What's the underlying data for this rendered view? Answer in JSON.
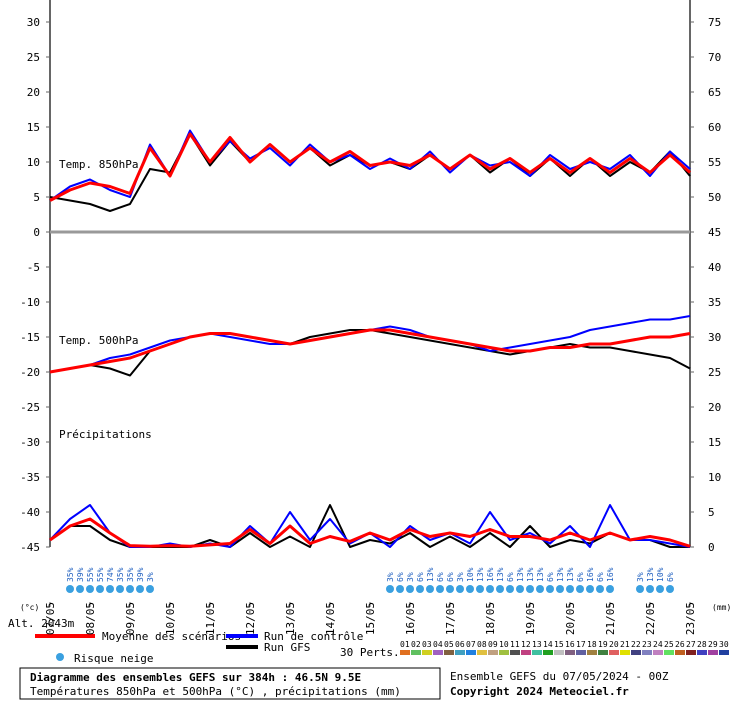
{
  "chart_data": {
    "type": "line",
    "title": "Diagramme des ensembles GEFS sur 384h : 46.5N 9.5E",
    "subtitle": "Températures 850hPa et 500hPa (°C) , précipitations (mm)",
    "run_label": "Ensemble GEFS du 07/05/2024 - 00Z",
    "copyright": "Copyright 2024 Meteociel.fr",
    "y_unit": "(°c)",
    "y2_unit": "(mm)",
    "altitude": "Alt. 2043m",
    "panels": {
      "t850": "Temp. 850hPa",
      "t500": "Temp. 500hPa",
      "precip": "Précipitations"
    },
    "x": [
      0,
      12,
      24,
      36,
      48,
      60,
      72,
      84,
      96,
      108,
      120,
      132,
      144,
      156,
      168,
      180,
      192,
      204,
      216,
      228,
      240,
      252,
      264,
      276,
      288,
      300,
      312,
      324,
      336,
      348,
      360,
      372,
      384
    ],
    "xlim": [
      0,
      384
    ],
    "xticks": [
      {
        "value": 0,
        "label": "07/05"
      },
      {
        "value": 24,
        "label": "08/05"
      },
      {
        "value": 48,
        "label": "09/05"
      },
      {
        "value": 72,
        "label": "10/05"
      },
      {
        "value": 96,
        "label": "11/05"
      },
      {
        "value": 120,
        "label": "12/05"
      },
      {
        "value": 144,
        "label": "13/05"
      },
      {
        "value": 168,
        "label": "14/05"
      },
      {
        "value": 192,
        "label": "15/05"
      },
      {
        "value": 216,
        "label": "16/05"
      },
      {
        "value": 240,
        "label": "17/05"
      },
      {
        "value": 264,
        "label": "18/05"
      },
      {
        "value": 288,
        "label": "19/05"
      },
      {
        "value": 312,
        "label": "20/05"
      },
      {
        "value": 336,
        "label": "21/05"
      },
      {
        "value": 360,
        "label": "22/05"
      },
      {
        "value": 384,
        "label": "23/05"
      }
    ],
    "ylim": [
      -45,
      30
    ],
    "yticks": [
      30,
      25,
      20,
      15,
      10,
      5,
      0,
      -5,
      -10,
      -15,
      -20,
      -25,
      -30,
      -35,
      -40,
      -45
    ],
    "y2lim": [
      0,
      75
    ],
    "y2ticks": [
      75,
      70,
      65,
      60,
      55,
      50,
      45,
      40,
      35,
      30,
      25,
      20,
      15,
      10,
      5,
      0
    ],
    "series": [
      {
        "name": "Moyenne des scénarios",
        "color": "#ff0000",
        "t850": [
          4.5,
          6,
          7,
          6.5,
          5.5,
          12,
          8,
          14,
          10,
          13.5,
          10,
          12.5,
          10,
          12,
          10,
          11.5,
          9.5,
          10,
          9.5,
          11,
          9,
          11,
          9,
          10.5,
          8.5,
          10.5,
          8.5,
          10.5,
          8.5,
          10.5,
          8.5,
          11,
          8.5
        ],
        "t500": [
          -20,
          -19.5,
          -19,
          -18.5,
          -18,
          -17,
          -16,
          -15,
          -14.5,
          -14.5,
          -15,
          -15.5,
          -16,
          -15.5,
          -15,
          -14.5,
          -14,
          -14,
          -14.5,
          -15,
          -15.5,
          -16,
          -16.5,
          -17,
          -17,
          -16.5,
          -16.5,
          -16,
          -16,
          -15.5,
          -15,
          -15,
          -14.5
        ],
        "precip": [
          1,
          3,
          4,
          2,
          0.2,
          0.1,
          0.2,
          0.1,
          0.3,
          0.5,
          2.5,
          0.5,
          3,
          0.5,
          1.5,
          0.8,
          2,
          1,
          2.5,
          1.5,
          2,
          1.5,
          2.5,
          1.5,
          1.5,
          1,
          2,
          1,
          2,
          1,
          1.5,
          1,
          0.1
        ]
      },
      {
        "name": "Run de contrôle",
        "color": "#0000ff",
        "t850": [
          4.5,
          6.5,
          7.5,
          6,
          5,
          12.5,
          8,
          14.5,
          10,
          13,
          10.5,
          12,
          9.5,
          12.5,
          10,
          11,
          9,
          10.5,
          9,
          11.5,
          8.5,
          11,
          9.5,
          10,
          8,
          11,
          9,
          10,
          9,
          11,
          8,
          11.5,
          9
        ],
        "t500": [
          -20,
          -19.5,
          -19,
          -18,
          -17.5,
          -16.5,
          -15.5,
          -15,
          -14.5,
          -15,
          -15.5,
          -16,
          -16,
          -15.5,
          -15,
          -14.5,
          -14,
          -13.5,
          -14,
          -15,
          -15.5,
          -16,
          -17,
          -16.5,
          -16,
          -15.5,
          -15,
          -14,
          -13.5,
          -13,
          -12.5,
          -12.5,
          -12
        ],
        "precip": [
          1,
          4,
          6,
          2,
          0,
          0,
          0.5,
          0,
          0.5,
          0,
          3,
          0.5,
          5,
          1,
          4,
          0.5,
          2,
          0,
          3,
          1,
          2,
          0.5,
          5,
          1,
          2,
          0.5,
          3,
          0,
          6,
          1,
          1,
          0.5,
          0
        ]
      },
      {
        "name": "Run GFS",
        "color": "#000000",
        "t850": [
          5,
          4.5,
          4,
          3,
          4,
          9,
          8.5,
          14,
          9.5,
          13,
          10,
          12.5,
          10,
          12,
          9.5,
          11,
          9.5,
          10,
          9,
          11,
          9,
          11,
          8.5,
          10.5,
          8,
          10.5,
          8,
          10.5,
          8,
          10,
          8.5,
          11.5,
          8
        ],
        "t500": [
          -20,
          -19.5,
          -19,
          -19.5,
          -20.5,
          -17,
          -16,
          -15,
          -14.5,
          -14.5,
          -15,
          -15.5,
          -16,
          -15,
          -14.5,
          -14,
          -14,
          -14.5,
          -15,
          -15.5,
          -16,
          -16.5,
          -17,
          -17.5,
          -17,
          -16.5,
          -16,
          -16.5,
          -16.5,
          -17,
          -17.5,
          -18,
          -19.5
        ],
        "precip": [
          1,
          3,
          3,
          1,
          0,
          0,
          0,
          0,
          1,
          0,
          2,
          0,
          1.5,
          0,
          6,
          0,
          1,
          0.5,
          2,
          0,
          1.5,
          0,
          2,
          0,
          3,
          0,
          1,
          0.5,
          2,
          1,
          1,
          0,
          0
        ]
      }
    ],
    "snow_risk": {
      "name": "Risque neige",
      "x": [
        12,
        18,
        24,
        30,
        36,
        42,
        48,
        54,
        60,
        204,
        210,
        216,
        222,
        228,
        234,
        240,
        246,
        252,
        258,
        264,
        270,
        276,
        282,
        288,
        294,
        300,
        306,
        312,
        318,
        324,
        330,
        336,
        354,
        360,
        366,
        372
      ],
      "values": [
        35,
        39,
        55,
        55,
        74,
        35,
        35,
        39,
        3,
        3,
        6,
        3,
        6,
        13,
        6,
        6,
        3,
        10,
        13,
        16,
        13,
        6,
        13,
        13,
        13,
        6,
        13,
        13,
        6,
        16,
        6,
        16,
        3,
        13,
        10,
        6
      ],
      "value_labels": [
        "35%",
        "39%",
        "55%",
        "55%",
        "74%",
        "35%",
        "35%",
        "39%",
        "3%",
        "3%",
        "6%",
        "3%",
        "6%",
        "13%",
        "6%",
        "6%",
        "3%",
        "10%",
        "13%",
        "16%",
        "13%",
        "6%",
        "13%",
        "13%",
        "13%",
        "6%",
        "13%",
        "13%",
        "6%",
        "16%",
        "6%",
        "16%",
        "3%",
        "13%",
        "10%",
        "6%"
      ]
    },
    "perturbations": {
      "label": "30 Perts.",
      "names": [
        "01",
        "02",
        "03",
        "04",
        "05",
        "06",
        "07",
        "08",
        "09",
        "10",
        "11",
        "12",
        "13",
        "14",
        "15",
        "16",
        "17",
        "18",
        "19",
        "20",
        "21",
        "22",
        "23",
        "24",
        "25",
        "26",
        "27",
        "28",
        "29",
        "30"
      ],
      "colors": [
        "#e07020",
        "#60c060",
        "#d0d020",
        "#a060c0",
        "#806040",
        "#40a0c0",
        "#2080e0",
        "#e0c040",
        "#c0a080",
        "#a0c040",
        "#505050",
        "#c04080",
        "#40c0a0",
        "#20a020",
        "#c0c0c0",
        "#806080",
        "#6060a0",
        "#a08040",
        "#408040",
        "#e06060",
        "#e0e000",
        "#404080",
        "#8080c0",
        "#c080c0",
        "#60e060",
        "#c06020",
        "#802020",
        "#4040c0",
        "#a040a0",
        "#2040a0"
      ]
    }
  }
}
